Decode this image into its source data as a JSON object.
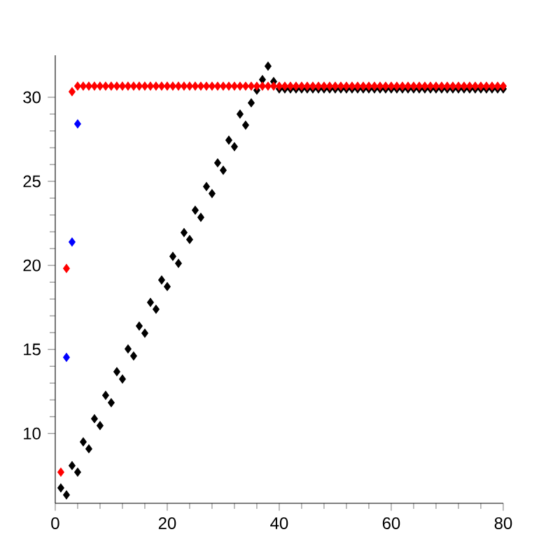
{
  "chart_data": {
    "type": "scatter",
    "marker": "diamond",
    "xlim": [
      0,
      80
    ],
    "ylim": [
      5.85,
      32.5
    ],
    "xticks": [
      0,
      20,
      40,
      60,
      80
    ],
    "yticks": [
      10,
      15,
      20,
      25,
      30
    ],
    "grid": false,
    "series": [
      {
        "color": "#0000ff",
        "x": [
          2,
          3,
          4
        ],
        "values": [
          14.53,
          21.39,
          28.42
        ]
      },
      {
        "color": "#000000",
        "x": [
          1,
          2,
          3,
          4,
          5,
          6,
          7,
          8,
          9,
          10,
          11,
          12,
          13,
          14,
          15,
          16,
          17,
          18,
          19,
          20,
          21,
          22,
          23,
          24,
          25,
          26,
          27,
          28,
          29,
          30,
          31,
          32,
          33,
          34,
          35,
          36,
          37,
          38,
          39,
          40,
          41,
          42,
          43,
          44,
          45,
          46,
          47,
          48,
          49,
          50,
          51,
          52,
          53,
          54,
          55,
          56,
          57,
          58,
          59,
          60,
          61,
          62,
          63,
          64,
          65,
          66,
          67,
          68,
          69,
          70,
          71,
          72,
          73,
          74,
          75,
          76,
          77,
          78,
          79,
          80
        ],
        "values": [
          6.76,
          6.35,
          8.09,
          7.7,
          9.5,
          9.09,
          10.88,
          10.47,
          12.27,
          11.83,
          13.68,
          13.24,
          15.03,
          14.61,
          16.39,
          15.97,
          17.8,
          17.39,
          19.13,
          18.74,
          20.54,
          20.12,
          21.95,
          21.54,
          23.28,
          22.86,
          24.69,
          24.27,
          26.1,
          25.66,
          27.45,
          27.06,
          29.0,
          28.34,
          29.67,
          30.42,
          31.05,
          31.85,
          30.94,
          30.5,
          30.5,
          30.5,
          30.5,
          30.5,
          30.5,
          30.5,
          30.5,
          30.5,
          30.5,
          30.5,
          30.5,
          30.5,
          30.5,
          30.5,
          30.5,
          30.5,
          30.5,
          30.5,
          30.5,
          30.5,
          30.5,
          30.5,
          30.5,
          30.5,
          30.5,
          30.5,
          30.5,
          30.5,
          30.5,
          30.5,
          30.5,
          30.5,
          30.5,
          30.5,
          30.5,
          30.5,
          30.5,
          30.5,
          30.5,
          30.5
        ]
      },
      {
        "color": "#ff0000",
        "x": [
          1,
          2,
          3,
          4,
          5,
          6,
          7,
          8,
          9,
          10,
          11,
          12,
          13,
          14,
          15,
          16,
          17,
          18,
          19,
          20,
          21,
          22,
          23,
          24,
          25,
          26,
          27,
          28,
          29,
          30,
          31,
          32,
          33,
          34,
          35,
          36,
          37,
          38,
          39,
          40,
          41,
          42,
          43,
          44,
          45,
          46,
          47,
          48,
          49,
          50,
          51,
          52,
          53,
          54,
          55,
          56,
          57,
          58,
          59,
          60,
          61,
          62,
          63,
          64,
          65,
          66,
          67,
          68,
          69,
          70,
          71,
          72,
          73,
          74,
          75,
          76,
          77,
          78,
          79,
          80
        ],
        "values": [
          7.7,
          19.82,
          30.33,
          30.66,
          30.66,
          30.66,
          30.66,
          30.66,
          30.66,
          30.66,
          30.66,
          30.66,
          30.66,
          30.66,
          30.66,
          30.66,
          30.66,
          30.66,
          30.66,
          30.66,
          30.66,
          30.66,
          30.66,
          30.66,
          30.66,
          30.66,
          30.66,
          30.66,
          30.66,
          30.66,
          30.66,
          30.66,
          30.66,
          30.66,
          30.66,
          30.66,
          30.66,
          30.66,
          30.66,
          30.66,
          30.66,
          30.66,
          30.66,
          30.66,
          30.66,
          30.66,
          30.66,
          30.66,
          30.66,
          30.66,
          30.66,
          30.66,
          30.66,
          30.66,
          30.66,
          30.66,
          30.66,
          30.66,
          30.66,
          30.66,
          30.66,
          30.66,
          30.66,
          30.66,
          30.66,
          30.66,
          30.66,
          30.66,
          30.66,
          30.66,
          30.66,
          30.66,
          30.66,
          30.66,
          30.66,
          30.66,
          30.66,
          30.66,
          30.66,
          30.66
        ]
      }
    ]
  }
}
